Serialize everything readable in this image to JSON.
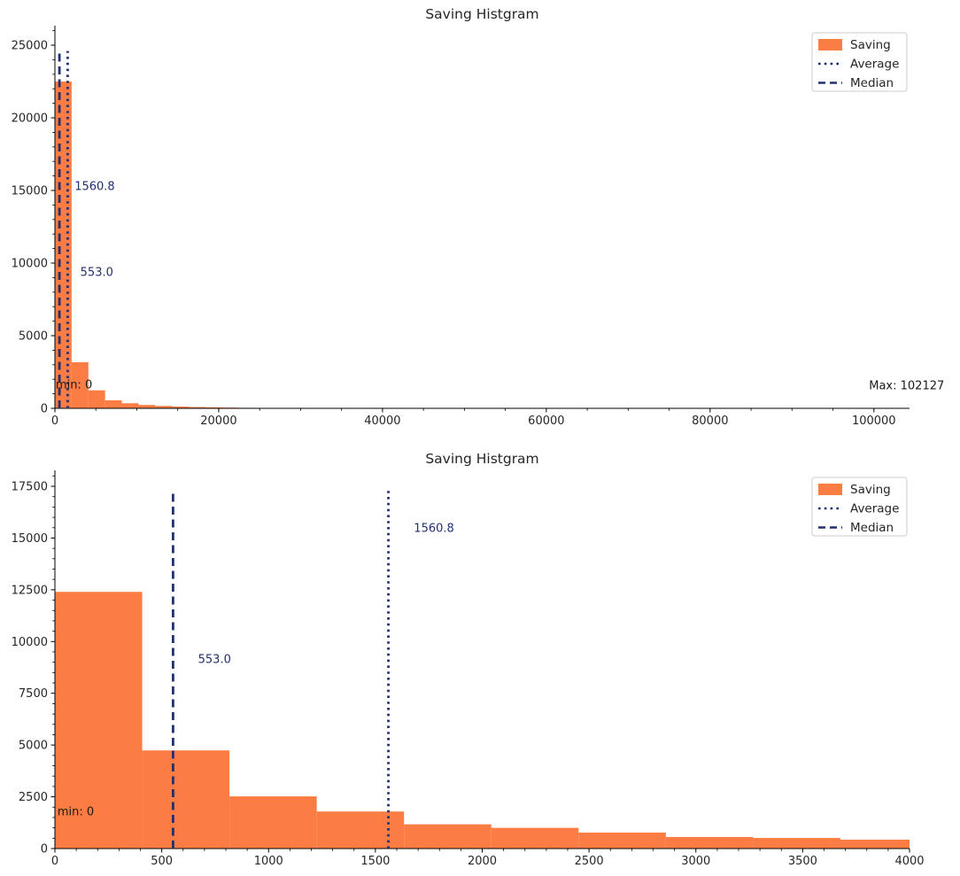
{
  "colors": {
    "bar": "#fb7d44",
    "line": "#22306f",
    "annotation_navy": "#22306f",
    "annotation_black": "#1a1a1a",
    "text": "#262626",
    "spine": "#000000",
    "legend_border": "#cccccc",
    "background": "#ffffff"
  },
  "legend_items": [
    {
      "label": "Saving",
      "marker": "patch"
    },
    {
      "label": "Average",
      "marker": "dotted"
    },
    {
      "label": "Median",
      "marker": "dashed"
    }
  ],
  "stats": {
    "average": 1560.8,
    "median": 553.0,
    "min": 0,
    "max": 102127,
    "min_label": "min: 0",
    "max_label": "Max: 102127"
  },
  "chart_data": [
    {
      "type": "bar",
      "subtype": "histogram",
      "title": "Saving Histgram",
      "series": "Saving",
      "xlabel": "",
      "ylabel": "",
      "grid": false,
      "legend_position": "upper right",
      "bin_start": 0,
      "bin_width": 2042.54,
      "num_bins": 50,
      "counts": [
        22500,
        3170,
        1240,
        550,
        350,
        230,
        165,
        120,
        90,
        70,
        50,
        35
      ],
      "xlim": [
        0,
        104350
      ],
      "ylim": [
        0,
        26100
      ],
      "xticks": [
        0,
        20000,
        40000,
        60000,
        80000,
        100000
      ],
      "yticks": [
        0,
        5000,
        10000,
        15000,
        20000,
        25000
      ],
      "x_minor_step": 5000,
      "y_minor_step": 1000,
      "lines": [
        {
          "name": "average",
          "x": 1560.8,
          "style": "dotted",
          "ymax": 24600
        },
        {
          "name": "median",
          "x": 553.0,
          "style": "dashed",
          "ymax": 24600
        }
      ],
      "annotations": [
        {
          "text": "1560.8",
          "x": 2400,
          "y": 15300,
          "color": "navy",
          "anchor": "start"
        },
        {
          "text": "553.0",
          "x": 3100,
          "y": 9400,
          "color": "navy",
          "anchor": "start"
        },
        {
          "text": "min: 0",
          "x": 100,
          "y": 1650,
          "color": "black",
          "anchor": "start"
        },
        {
          "text": "Max: 102127",
          "x": 104000,
          "y": 1600,
          "color": "black",
          "anchor": "middle"
        }
      ]
    },
    {
      "type": "bar",
      "subtype": "histogram",
      "title": "Saving Histgram",
      "series": "Saving",
      "xlabel": "",
      "ylabel": "",
      "grid": false,
      "legend_position": "upper right",
      "bin_start": 0,
      "bin_width": 408.51,
      "num_bins": 250,
      "counts": [
        12400,
        4740,
        2520,
        1790,
        1170,
        1000,
        770,
        560,
        510,
        430
      ],
      "xlim": [
        0,
        4000
      ],
      "ylim": [
        0,
        18100
      ],
      "xticks": [
        0,
        500,
        1000,
        1500,
        2000,
        2500,
        3000,
        3500,
        4000
      ],
      "yticks": [
        0,
        2500,
        5000,
        7500,
        10000,
        12500,
        15000,
        17500
      ],
      "x_minor_step": 100,
      "y_minor_step": 500,
      "lines": [
        {
          "name": "average",
          "x": 1560.8,
          "style": "dotted",
          "ymax": 17350
        },
        {
          "name": "median",
          "x": 553.0,
          "style": "dashed",
          "ymax": 17350
        }
      ],
      "annotations": [
        {
          "text": "1560.8",
          "x": 1680,
          "y": 15500,
          "color": "navy",
          "anchor": "start"
        },
        {
          "text": "553.0",
          "x": 670,
          "y": 9150,
          "color": "navy",
          "anchor": "start"
        },
        {
          "text": "min: 0",
          "x": 12,
          "y": 1800,
          "color": "black",
          "anchor": "start"
        }
      ]
    }
  ]
}
